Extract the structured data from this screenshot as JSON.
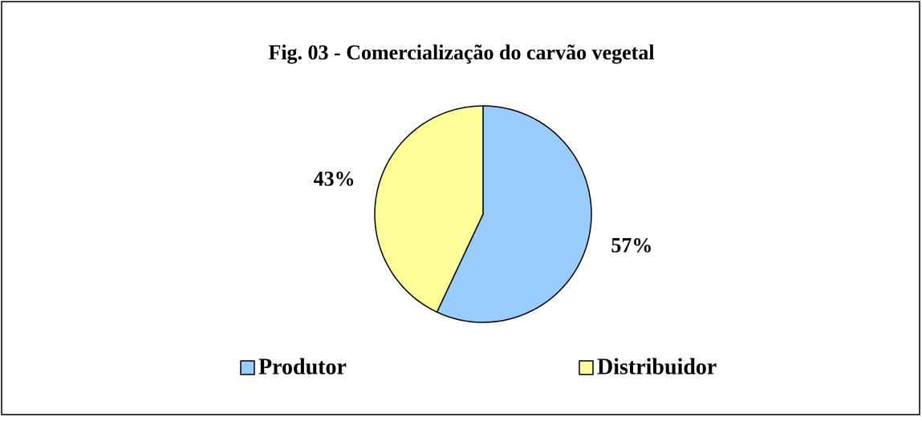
{
  "chart_data": {
    "type": "pie",
    "title": "Fig. 03 - Comercialização do carvão vegetal",
    "categories": [
      "Produtor",
      "Distribuidor"
    ],
    "values": [
      57,
      43
    ],
    "value_labels": [
      "57%",
      "43%"
    ],
    "colors": [
      "#99ccff",
      "#ffff99"
    ],
    "legend": "bottom"
  }
}
